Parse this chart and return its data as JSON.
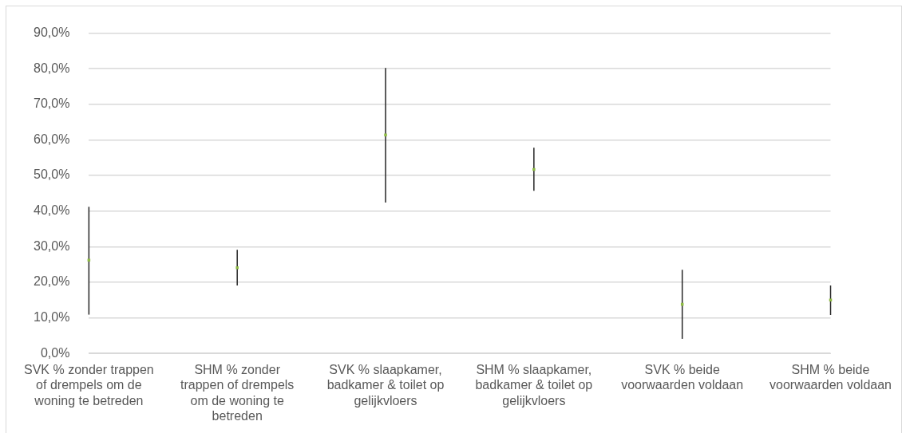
{
  "chart_data": {
    "type": "scatter",
    "categories": [
      "SVK % zonder trappen of drempels om de woning te betreden",
      "SHM % zonder trappen of drempels om de woning te betreden",
      "SVK % slaapkamer, badkamer & toilet op gelijkvloers",
      "SHM % slaapkamer, badkamer & toilet op gelijkvloers",
      "SVK % beide voorwaarden voldaan",
      "SHM % beide voorwaarden voldaan"
    ],
    "series": [
      {
        "color": "#8fbc45",
        "values": [
          26.2,
          24.1,
          61.4,
          51.7,
          13.8,
          15.0
        ],
        "errors": [
          [
            10.9,
            41.2
          ],
          [
            19.1,
            29.1
          ],
          [
            42.4,
            80.2
          ],
          [
            45.7,
            57.8
          ],
          [
            4.1,
            23.5
          ],
          [
            10.8,
            19.1
          ]
        ]
      }
    ],
    "ylim": [
      0,
      90
    ],
    "yticks": [
      {
        "value": 0,
        "label": "0,0%"
      },
      {
        "value": 10,
        "label": "10,0%"
      },
      {
        "value": 20,
        "label": "20,0%"
      },
      {
        "value": 30,
        "label": "30,0%"
      },
      {
        "value": 40,
        "label": "40,0%"
      },
      {
        "value": 50,
        "label": "50,0%"
      },
      {
        "value": 60,
        "label": "60,0%"
      },
      {
        "value": 70,
        "label": "70,0%"
      },
      {
        "value": 80,
        "label": "80,0%"
      },
      {
        "value": 90,
        "label": "90,0%"
      }
    ],
    "grid": "y",
    "legend": false,
    "marker": "square"
  }
}
